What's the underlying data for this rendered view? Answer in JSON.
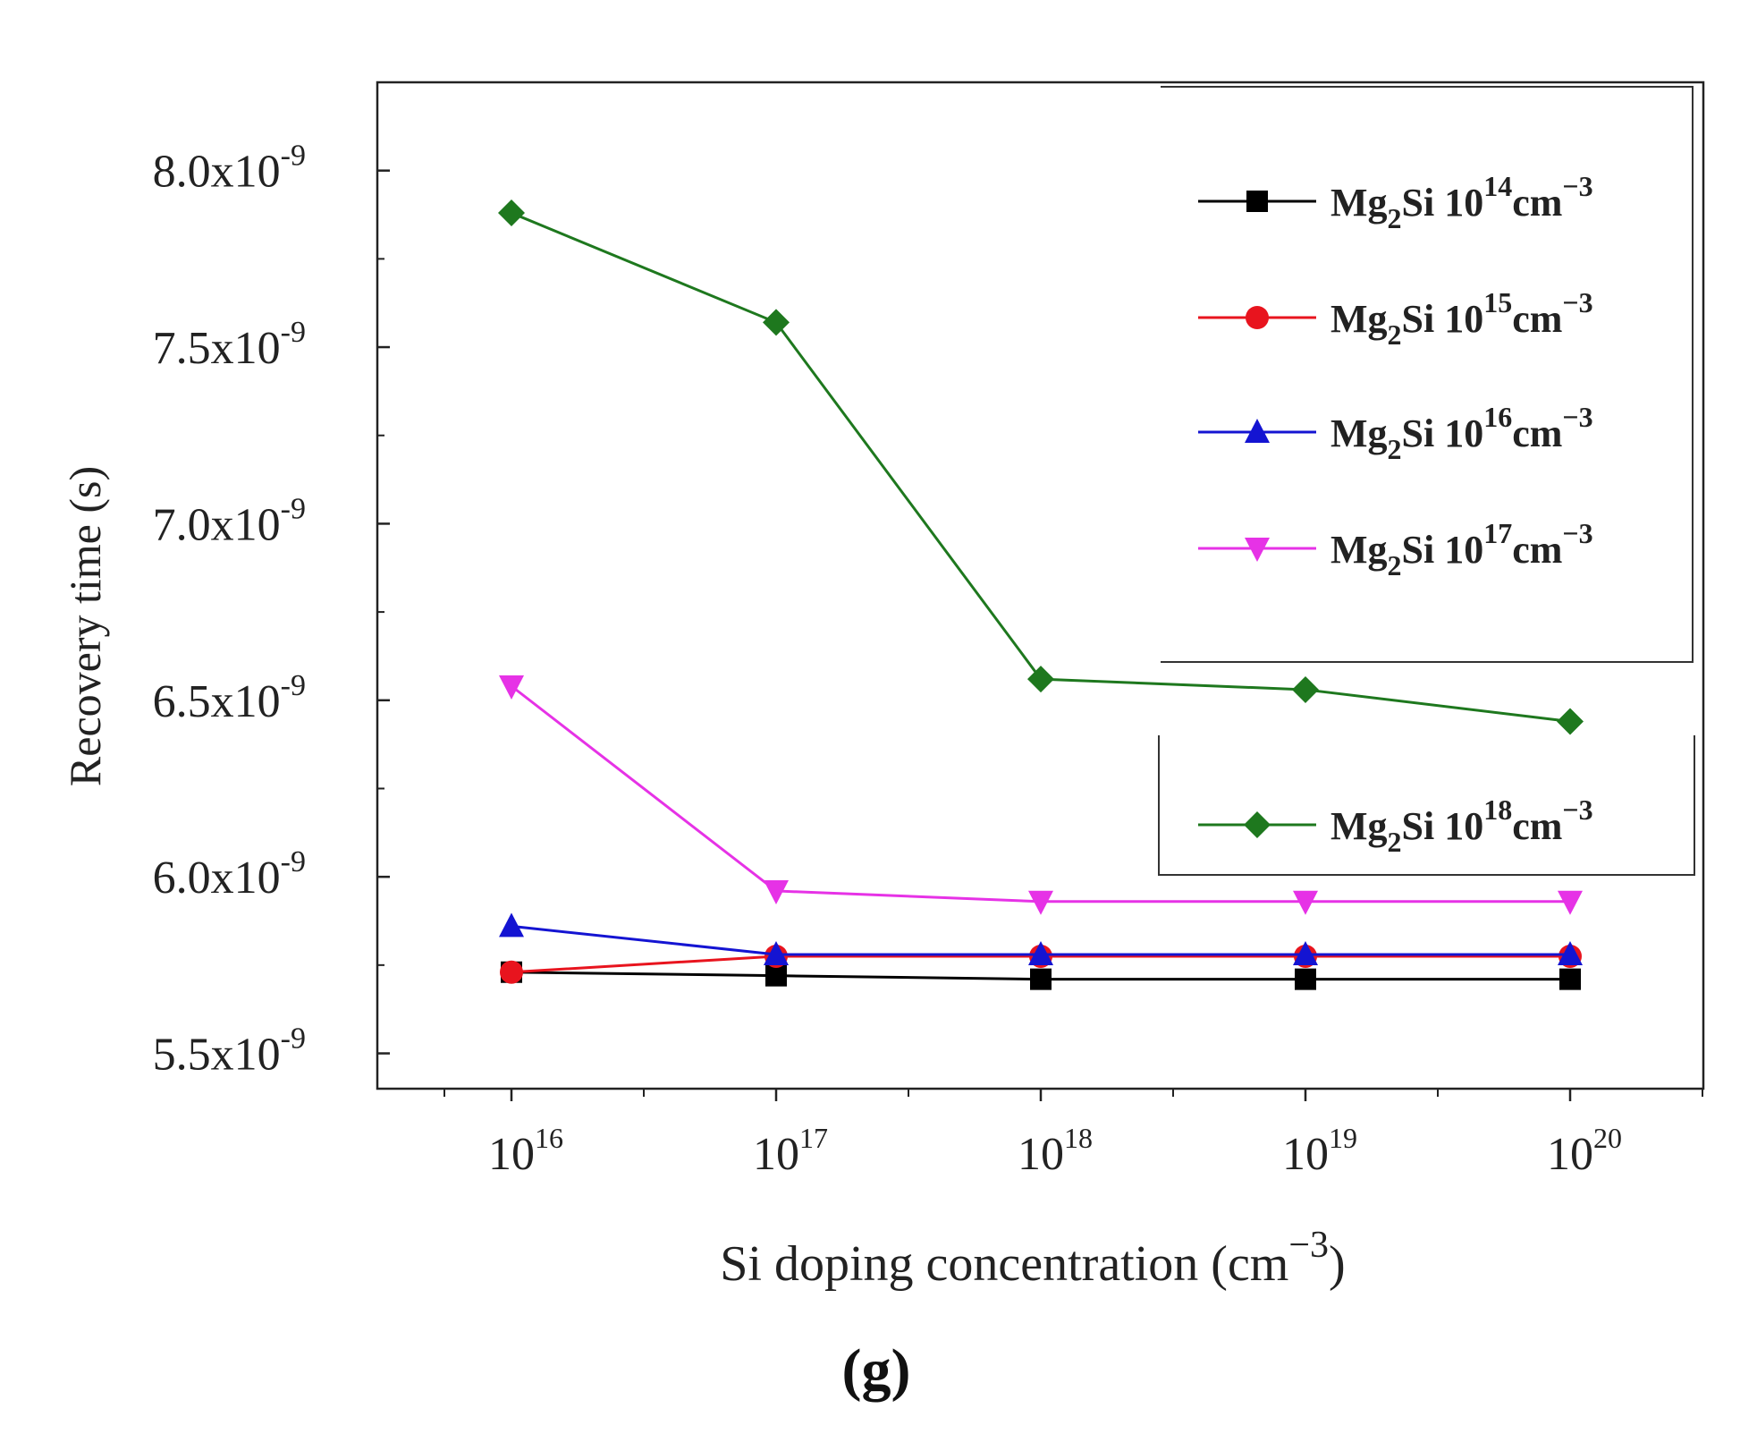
{
  "chart_data": {
    "type": "line",
    "title": "",
    "panel_label": "(g)",
    "xlabel_main": "Si doping concentration (cm",
    "xlabel_sup": "−3",
    "xlabel_close": ")",
    "ylabel": "Recovery time (s)",
    "x_exponents": [
      16,
      17,
      18,
      19,
      20
    ],
    "x_tick_base": "10",
    "x_tick_sups": [
      "16",
      "17",
      "18",
      "19",
      "20"
    ],
    "ylim": [
      5.4e-09,
      8.25e-09
    ],
    "y_ticks": [
      5.5e-09,
      6e-09,
      6.5e-09,
      7e-09,
      7.5e-09,
      8e-09
    ],
    "y_tick_mantissas": [
      "5.5x10",
      "6.0x10",
      "6.5x10",
      "7.0x10",
      "7.5x10",
      "8.0x10"
    ],
    "y_tick_sup": "-9",
    "grid": false,
    "legend_position": "right",
    "series": [
      {
        "name": "Mg2Si 10^14 cm^-3",
        "legend_base": "Mg",
        "legend_sub": "2",
        "legend_mid": "Si 10",
        "legend_sup1": "14",
        "legend_cm": "cm",
        "legend_sup2": "−3",
        "color": "#000000",
        "marker": "square",
        "values": [
          5.73e-09,
          5.72e-09,
          5.71e-09,
          5.71e-09,
          5.71e-09
        ]
      },
      {
        "name": "Mg2Si 10^15 cm^-3",
        "legend_base": "Mg",
        "legend_sub": "2",
        "legend_mid": "Si 10",
        "legend_sup1": "15",
        "legend_cm": "cm",
        "legend_sup2": "−3",
        "color": "#e8141e",
        "marker": "circle",
        "values": [
          5.73e-09,
          5.775e-09,
          5.775e-09,
          5.775e-09,
          5.775e-09
        ]
      },
      {
        "name": "Mg2Si 10^16 cm^-3",
        "legend_base": "Mg",
        "legend_sub": "2",
        "legend_mid": "Si 10",
        "legend_sup1": "16",
        "legend_cm": "cm",
        "legend_sup2": "−3",
        "color": "#1414d2",
        "marker": "triangle-up",
        "values": [
          5.86e-09,
          5.78e-09,
          5.78e-09,
          5.78e-09,
          5.78e-09
        ]
      },
      {
        "name": "Mg2Si 10^17 cm^-3",
        "legend_base": "Mg",
        "legend_sub": "2",
        "legend_mid": "Si 10",
        "legend_sup1": "17",
        "legend_cm": "cm",
        "legend_sup2": "−3",
        "color": "#e632e6",
        "marker": "triangle-down",
        "values": [
          6.54e-09,
          5.96e-09,
          5.93e-09,
          5.93e-09,
          5.93e-09
        ]
      },
      {
        "name": "Mg2Si 10^18 cm^-3",
        "legend_base": "Mg",
        "legend_sub": "2",
        "legend_mid": "Si 10",
        "legend_sup1": "18",
        "legend_cm": "cm",
        "legend_sup2": "−3",
        "color": "#1e781e",
        "marker": "diamond",
        "values": [
          7.88e-09,
          7.57e-09,
          6.56e-09,
          6.53e-09,
          6.44e-09
        ]
      }
    ]
  }
}
